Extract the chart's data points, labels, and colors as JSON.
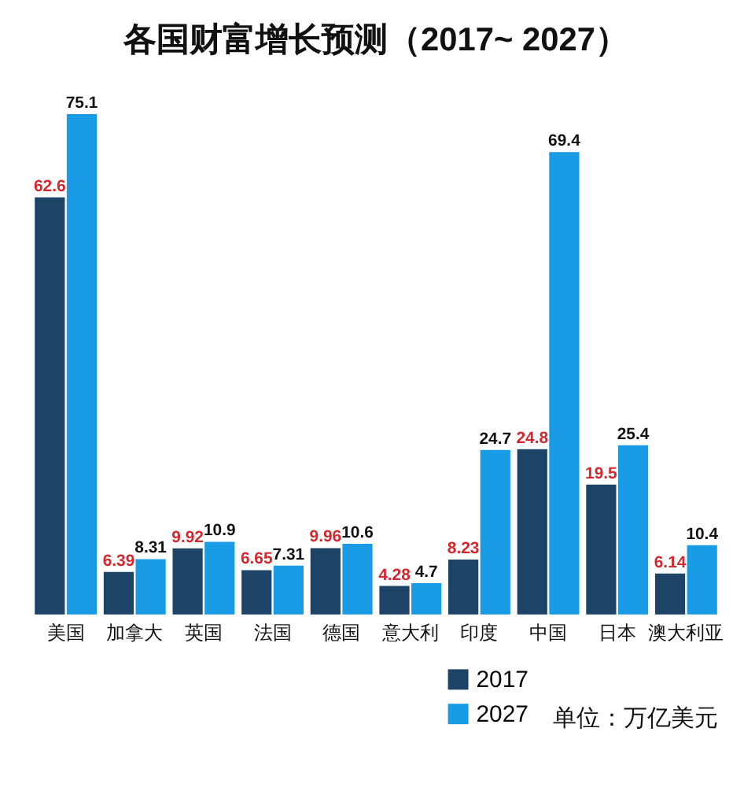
{
  "chart_data": {
    "type": "bar",
    "title": "各国财富增长预测（2017~ 2027）",
    "categories": [
      "美国",
      "加拿大",
      "英国",
      "法国",
      "德国",
      "意大利",
      "印度",
      "中国",
      "日本",
      "澳大利亚"
    ],
    "series": [
      {
        "name": "2017",
        "color": "#1d4466",
        "values": [
          62.6,
          6.39,
          9.92,
          6.65,
          9.96,
          4.28,
          8.23,
          24.8,
          19.5,
          6.14
        ]
      },
      {
        "name": "2027",
        "color": "#1a9be6",
        "values": [
          75.1,
          8.31,
          10.9,
          7.31,
          10.6,
          4.7,
          24.7,
          69.4,
          25.4,
          10.4
        ]
      }
    ],
    "data_labels": true,
    "legend": "bottom right",
    "annotations": [
      "单位：万亿美元"
    ]
  }
}
